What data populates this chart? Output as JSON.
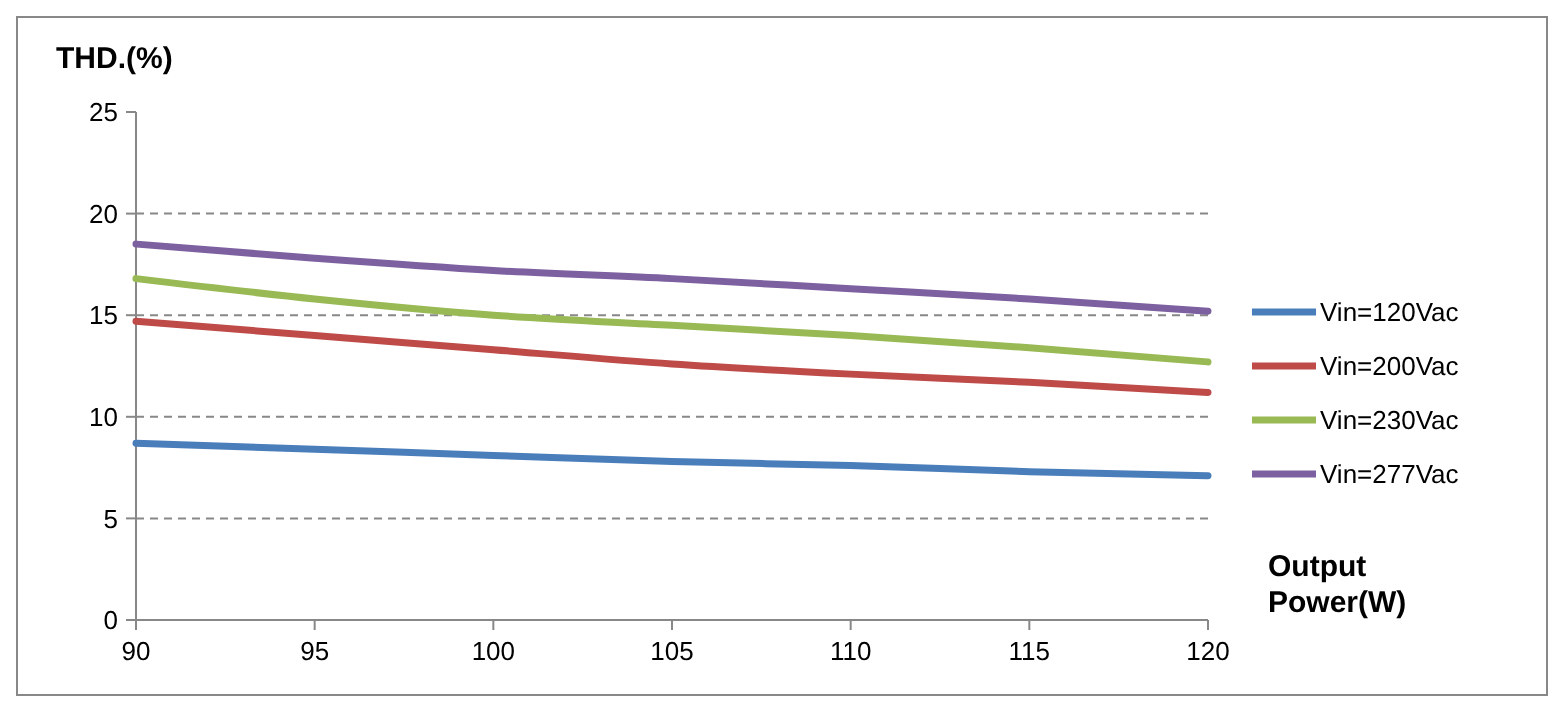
{
  "chart_data": {
    "type": "line",
    "ylabel": "THD.(%)",
    "xlabel": "Output Power(W)",
    "x": [
      90,
      95,
      100,
      105,
      110,
      115,
      120
    ],
    "series": [
      {
        "name": "Vin=120Vac",
        "color": "#4a7ebb",
        "values": [
          8.7,
          8.4,
          8.1,
          7.8,
          7.6,
          7.3,
          7.1
        ]
      },
      {
        "name": "Vin=200Vac",
        "color": "#be4b48",
        "values": [
          14.7,
          14.0,
          13.3,
          12.6,
          12.1,
          11.7,
          11.2
        ]
      },
      {
        "name": "Vin=230Vac",
        "color": "#98b954",
        "values": [
          16.8,
          15.8,
          15.0,
          14.5,
          14.0,
          13.4,
          12.7
        ]
      },
      {
        "name": "Vin=277Vac",
        "color": "#7d60a0",
        "values": [
          18.5,
          17.8,
          17.2,
          16.8,
          16.3,
          15.8,
          15.2
        ]
      }
    ],
    "xlim": [
      90,
      120
    ],
    "xticks": [
      90,
      95,
      100,
      105,
      110,
      115,
      120
    ],
    "ylim": [
      0,
      25
    ],
    "yticks": [
      0,
      5,
      10,
      15,
      20,
      25
    ],
    "grid": "y",
    "legend": "right",
    "marker": "none",
    "line_style": "solid"
  }
}
